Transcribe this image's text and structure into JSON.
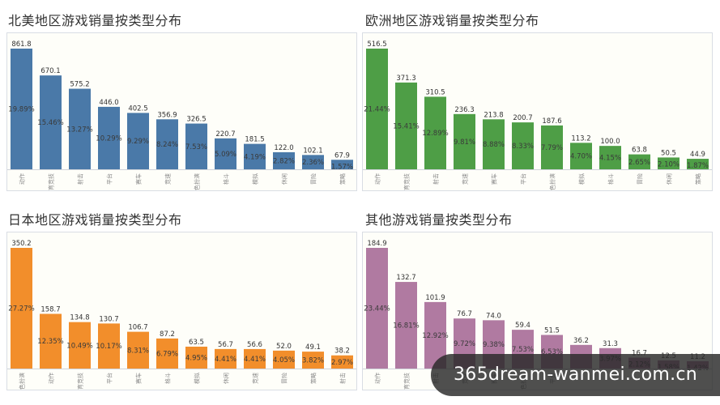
{
  "chart_data": [
    {
      "type": "bar",
      "title": "北美地区游戏销量按类型分布",
      "color": "#4a79a8",
      "categories": [
        "动作",
        "体育竞技",
        "射击",
        "平台",
        "赛车",
        "竞速",
        "角色扮演",
        "格斗",
        "模拟",
        "休闲",
        "冒险",
        "策略"
      ],
      "values": [
        861.8,
        670.1,
        575.2,
        446.0,
        402.5,
        356.9,
        326.5,
        220.7,
        181.5,
        122.0,
        102.1,
        67.9
      ],
      "value_labels": [
        "861.8",
        "670.1",
        "575.2",
        "446.0",
        "402.5",
        "356.9",
        "326.5",
        "220.7",
        "181.5",
        "122.0",
        "102.1",
        "67.9"
      ],
      "percent_labels": [
        "19.89%",
        "15.46%",
        "13.27%",
        "10.29%",
        "9.29%",
        "8.24%",
        "7.53%",
        "5.09%",
        "4.19%",
        "2.82%",
        "2.36%",
        "1.57%"
      ],
      "ylim": [
        0,
        861.8
      ]
    },
    {
      "type": "bar",
      "title": "欧洲地区游戏销量按类型分布",
      "color": "#4e9e46",
      "categories": [
        "动作",
        "体育竞技",
        "射击",
        "竞速",
        "赛车",
        "平台",
        "角色扮演",
        "模拟",
        "格斗",
        "冒险",
        "休闲",
        "策略"
      ],
      "values": [
        516.5,
        371.3,
        310.5,
        236.3,
        213.8,
        200.7,
        187.6,
        113.2,
        100.0,
        63.8,
        50.5,
        44.9
      ],
      "value_labels": [
        "516.5",
        "371.3",
        "310.5",
        "236.3",
        "213.8",
        "200.7",
        "187.6",
        "113.2",
        "100.0",
        "63.8",
        "50.5",
        "44.9"
      ],
      "percent_labels": [
        "21.44%",
        "15.41%",
        "12.89%",
        "9.81%",
        "8.88%",
        "8.33%",
        "7.79%",
        "4.70%",
        "4.15%",
        "2.65%",
        "2.10%",
        "1.87%"
      ],
      "ylim": [
        0,
        516.5
      ]
    },
    {
      "type": "bar",
      "title": "日本地区游戏销量按类型分布",
      "color": "#f28e2b",
      "categories": [
        "角色扮演",
        "动作",
        "体育竞技",
        "平台",
        "赛车",
        "格斗",
        "模拟",
        "休闲",
        "竞速",
        "冒险",
        "策略",
        "射击"
      ],
      "values": [
        350.2,
        158.7,
        134.8,
        130.7,
        106.7,
        87.2,
        63.5,
        56.7,
        56.6,
        52.0,
        49.1,
        38.2
      ],
      "value_labels": [
        "350.2",
        "158.7",
        "134.8",
        "130.7",
        "106.7",
        "87.2",
        "63.5",
        "56.7",
        "56.6",
        "52.0",
        "49.1",
        "38.2"
      ],
      "percent_labels": [
        "27.27%",
        "12.35%",
        "10.49%",
        "10.17%",
        "8.31%",
        "6.79%",
        "4.95%",
        "4.41%",
        "4.41%",
        "4.05%",
        "3.82%",
        "2.97%"
      ],
      "ylim": [
        0,
        350.2
      ]
    },
    {
      "type": "bar",
      "title": "其他游戏销量按类型分布",
      "color": "#b07aa1",
      "categories": [
        "动作",
        "体育竞技",
        "射击",
        "竞速",
        "赛车",
        "角色扮演",
        "平台",
        "",
        "",
        "",
        "",
        ""
      ],
      "values": [
        184.9,
        132.7,
        101.9,
        76.7,
        74.0,
        59.4,
        51.5,
        36.2,
        31.3,
        16.7,
        12.5,
        11.2
      ],
      "value_labels": [
        "184.9",
        "132.7",
        "101.9",
        "76.7",
        "74.0",
        "59.4",
        "51.5",
        "36.2",
        "31.3",
        "16.7",
        "12.5",
        "11.2"
      ],
      "percent_labels": [
        "23.44%",
        "16.81%",
        "12.92%",
        "9.72%",
        "9.38%",
        "7.53%",
        "6.53%",
        "",
        "3.97%",
        "2.12%",
        "1.58%",
        "1.42%"
      ],
      "ylim": [
        0,
        184.9
      ]
    }
  ],
  "watermark": "365dream-wanmei.com.cn"
}
